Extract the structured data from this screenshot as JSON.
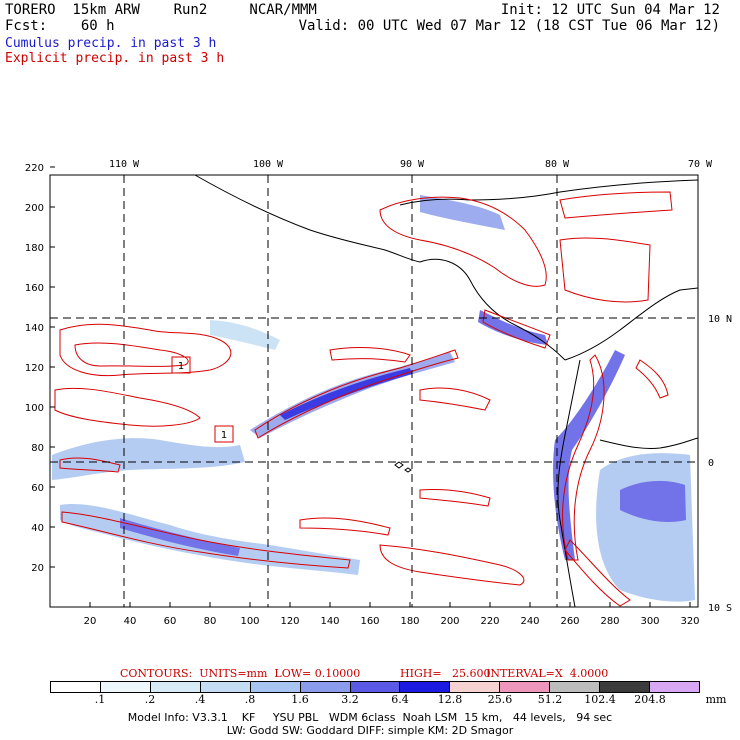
{
  "header": {
    "left_line1": "TORERO  15km ARW    Run2     NCAR/MMM",
    "left_line2": "Fcst:    60 h",
    "right_line1": "Init: 12 UTC Sun 04 Mar 12",
    "right_line2": "Valid: 00 UTC Wed 07 Mar 12 (18 CST Tue 06 Mar 12)"
  },
  "legend": {
    "cumulus": "Cumulus precip. in past 3 h",
    "explicit": "Explicit precip. in past 3 h"
  },
  "map": {
    "lon_labels": [
      "110 W",
      "100 W",
      "90 W",
      "80 W",
      "70 W"
    ],
    "lat_labels": [
      "10 N",
      "0",
      "10 S"
    ],
    "y_ticks": [
      "220",
      "200",
      "180",
      "160",
      "140",
      "120",
      "100",
      "80",
      "60",
      "40",
      "20"
    ],
    "x_ticks": [
      "20",
      "40",
      "60",
      "80",
      "100",
      "120",
      "140",
      "160",
      "180",
      "200",
      "220",
      "240",
      "260",
      "280",
      "300",
      "320"
    ],
    "box_labels": [
      "1",
      "1"
    ]
  },
  "contour_info": {
    "units": "CONTOURS:  UNITS=mm  LOW= 0.10000",
    "high": "HIGH=   25.600",
    "interval": "INTERVAL=X  4.0000"
  },
  "colorbar": {
    "labels": [
      ".1",
      ".2",
      ".4",
      ".8",
      "1.6",
      "3.2",
      "6.4",
      "12.8",
      "25.6",
      "51.2",
      "102.4",
      "204.8"
    ],
    "unit": "mm",
    "colors": [
      "#ffffff",
      "#eef8fc",
      "#d8ecf8",
      "#c4ddf4",
      "#a8c4f0",
      "#8c9cec",
      "#5a5ae6",
      "#1a1ae0",
      "#f6d2d2",
      "#ee96bc",
      "#bcbcbc",
      "#3c3c3c",
      "#d8a8f4"
    ]
  },
  "footer": {
    "line1": "Model Info: V3.3.1    KF     YSU PBL   WDM 6class  Noah LSM  15 km,   44 levels,   94 sec",
    "line2": "LW: Godd SW: Goddard DIFF: simple KM: 2D Smagor"
  }
}
